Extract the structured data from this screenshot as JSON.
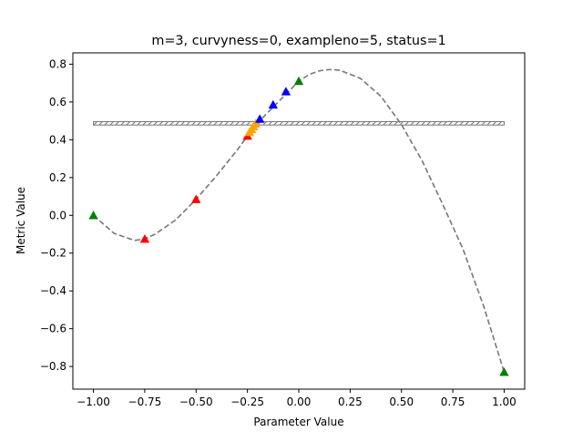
{
  "chart_data": {
    "type": "line",
    "title": "m=3, curvyness=0, exampleno=5, status=1",
    "xlabel": "Parameter Value",
    "ylabel": "Metric Value",
    "xlim": [
      -1.1,
      1.1
    ],
    "ylim": [
      -0.92,
      0.86
    ],
    "xticks": [
      -1.0,
      -0.75,
      -0.5,
      -0.25,
      0.0,
      0.25,
      0.5,
      0.75,
      1.0
    ],
    "xtick_labels": [
      "−1.00",
      "−0.75",
      "−0.50",
      "−0.25",
      "0.00",
      "0.25",
      "0.50",
      "0.75",
      "1.00"
    ],
    "yticks": [
      -0.8,
      -0.6,
      -0.4,
      -0.2,
      0.0,
      0.2,
      0.4,
      0.6,
      0.8
    ],
    "ytick_labels": [
      "−0.8",
      "−0.6",
      "−0.4",
      "−0.2",
      "0.0",
      "0.2",
      "0.4",
      "0.6",
      "0.8"
    ],
    "grid": false,
    "curve": {
      "style": "dashed",
      "color": "#777777",
      "points": [
        [
          -1.0,
          0.0
        ],
        [
          -0.9,
          -0.095
        ],
        [
          -0.8,
          -0.133
        ],
        [
          -0.75,
          -0.125
        ],
        [
          -0.7,
          -0.1
        ],
        [
          -0.6,
          -0.025
        ],
        [
          -0.5,
          0.085
        ],
        [
          -0.4,
          0.21
        ],
        [
          -0.3,
          0.345
        ],
        [
          -0.25,
          0.42
        ],
        [
          -0.2,
          0.49
        ],
        [
          -0.1,
          0.6
        ],
        [
          0.0,
          0.71
        ],
        [
          0.05,
          0.745
        ],
        [
          0.1,
          0.765
        ],
        [
          0.15,
          0.772
        ],
        [
          0.2,
          0.768
        ],
        [
          0.3,
          0.725
        ],
        [
          0.4,
          0.63
        ],
        [
          0.5,
          0.48
        ],
        [
          0.6,
          0.29
        ],
        [
          0.7,
          0.06
        ],
        [
          0.8,
          -0.18
        ],
        [
          0.9,
          -0.48
        ],
        [
          1.0,
          -0.83
        ]
      ]
    },
    "band": {
      "x": [
        -1.0,
        1.0
      ],
      "y": [
        0.478,
        0.496
      ],
      "hatch": "////",
      "edge_color": "#777777"
    },
    "markers": [
      {
        "x": -1.0,
        "y": 0.0,
        "color": "#008000"
      },
      {
        "x": -0.75,
        "y": -0.125,
        "color": "#ff0000"
      },
      {
        "x": -0.5,
        "y": 0.085,
        "color": "#ff0000"
      },
      {
        "x": -0.25,
        "y": 0.42,
        "color": "#ff0000"
      },
      {
        "x": -0.24,
        "y": 0.44,
        "color": "#ffa500"
      },
      {
        "x": -0.23,
        "y": 0.455,
        "color": "#ffa500"
      },
      {
        "x": -0.22,
        "y": 0.47,
        "color": "#ffa500"
      },
      {
        "x": -0.21,
        "y": 0.485,
        "color": "#ffa500"
      },
      {
        "x": -0.19,
        "y": 0.51,
        "color": "#0000ff"
      },
      {
        "x": -0.125,
        "y": 0.585,
        "color": "#0000ff"
      },
      {
        "x": -0.0625,
        "y": 0.655,
        "color": "#0000ff"
      },
      {
        "x": 0.0,
        "y": 0.71,
        "color": "#008000"
      },
      {
        "x": 1.0,
        "y": -0.83,
        "color": "#008000"
      }
    ]
  }
}
